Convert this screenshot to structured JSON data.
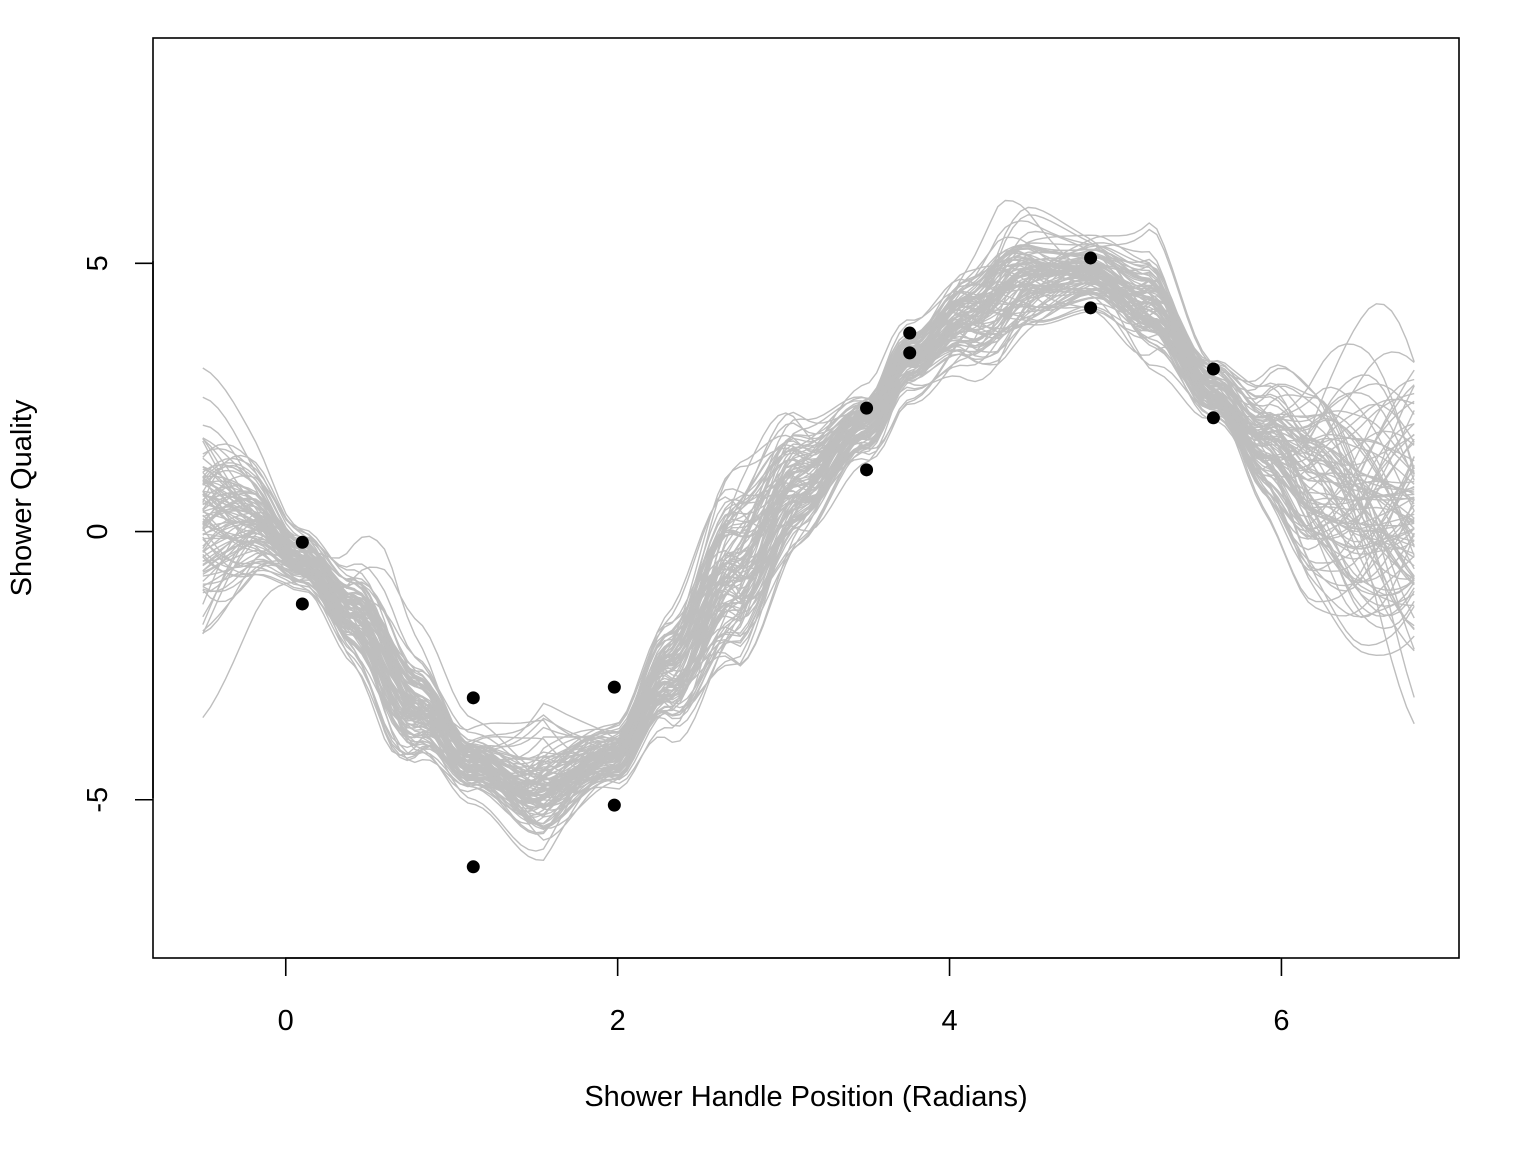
{
  "chart_data": {
    "type": "line",
    "title": "",
    "xlabel": "Shower Handle Position (Radians)",
    "ylabel": "Shower Quality",
    "xlim": [
      -0.8,
      7.07
    ],
    "ylim": [
      -7.95,
      9.2
    ],
    "x_ticks": [
      0,
      2,
      4,
      6
    ],
    "y_ticks": [
      -5,
      0,
      5
    ],
    "grid": false,
    "legend": "none",
    "line_color": "#bebebe",
    "point_color": "#000000",
    "x_range_curves": [
      -0.5,
      6.8
    ],
    "n_curves": 100,
    "mean_curve": {
      "x": [
        -0.5,
        -0.2,
        0.1,
        0.4,
        0.8,
        1.12,
        1.5,
        1.98,
        2.3,
        2.7,
        3.1,
        3.5,
        3.76,
        4.1,
        4.5,
        4.85,
        5.2,
        5.59,
        5.9,
        6.2,
        6.5,
        6.8
      ],
      "y": [
        0.0,
        0.0,
        -0.6,
        -1.5,
        -3.2,
        -4.3,
        -4.9,
        -4.2,
        -2.6,
        -0.6,
        0.9,
        2.0,
        3.2,
        4.0,
        4.7,
        4.8,
        4.2,
        2.6,
        1.6,
        0.9,
        0.6,
        0.5
      ]
    },
    "observed_points": [
      {
        "x": 0.1,
        "y": -0.2
      },
      {
        "x": 0.1,
        "y": -1.35
      },
      {
        "x": 1.13,
        "y": -3.1
      },
      {
        "x": 1.13,
        "y": -6.25
      },
      {
        "x": 1.98,
        "y": -2.9
      },
      {
        "x": 1.98,
        "y": -5.1
      },
      {
        "x": 3.5,
        "y": 2.3
      },
      {
        "x": 3.5,
        "y": 1.15
      },
      {
        "x": 3.76,
        "y": 3.7
      },
      {
        "x": 3.76,
        "y": 3.33
      },
      {
        "x": 4.85,
        "y": 5.1
      },
      {
        "x": 4.85,
        "y": 4.17
      },
      {
        "x": 5.59,
        "y": 3.03
      },
      {
        "x": 5.59,
        "y": 2.12
      }
    ]
  }
}
